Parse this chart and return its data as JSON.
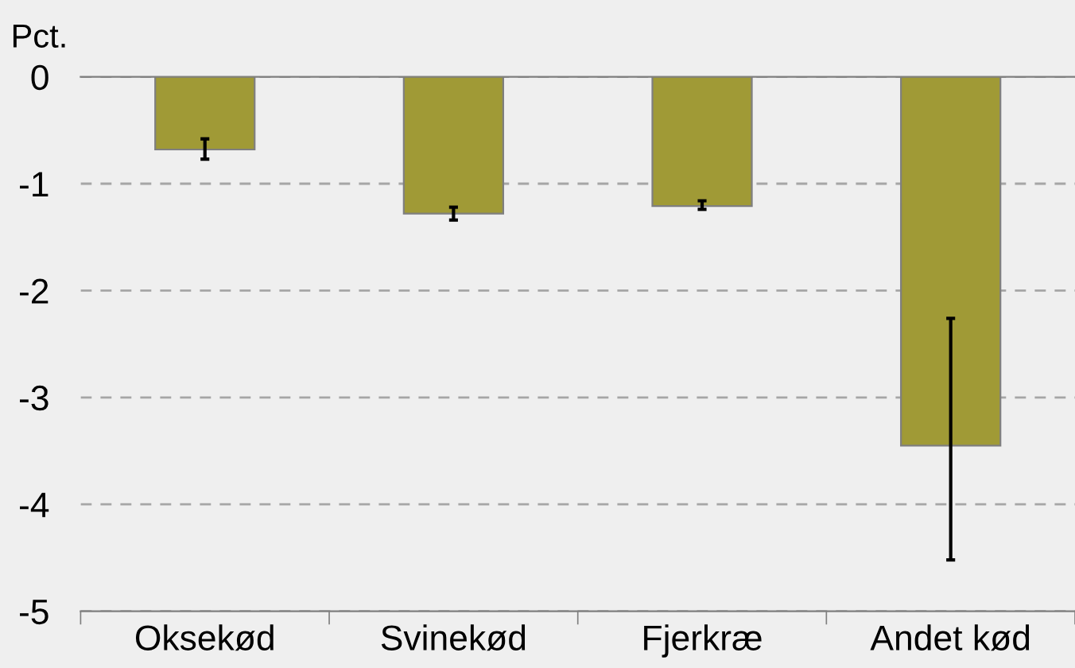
{
  "chart_data": {
    "type": "bar",
    "ylabel": "Pct.",
    "categories": [
      "Oksekød",
      "Svinekød",
      "Fjerkræ",
      "Andet kød"
    ],
    "values": [
      -0.68,
      -1.28,
      -1.21,
      -3.45
    ],
    "errors": [
      [
        -0.77,
        -0.58
      ],
      [
        -1.34,
        -1.22
      ],
      [
        -1.24,
        -1.16
      ],
      [
        -4.52,
        -2.26
      ]
    ],
    "color": "#a09a36",
    "ylim": [
      -5,
      0
    ],
    "yticks": [
      -5,
      -4,
      -3,
      -2,
      -1,
      0
    ],
    "grid": "y"
  }
}
